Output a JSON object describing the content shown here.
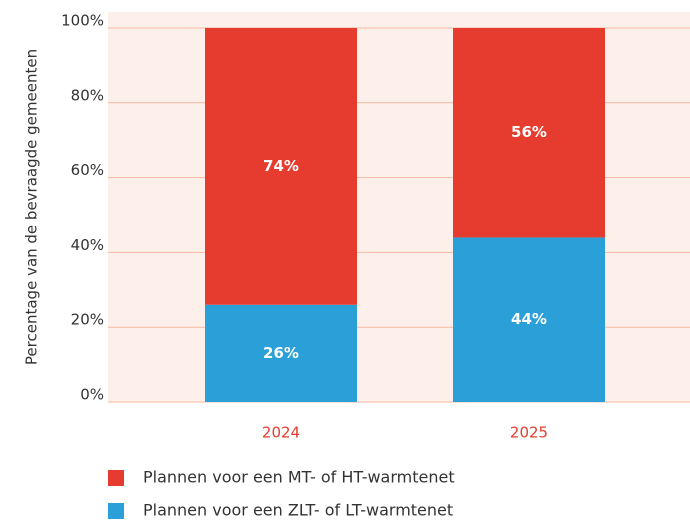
{
  "chart_data": {
    "type": "stacked_bar",
    "y_label": "Percentage van de bevraagde gemeenten",
    "categories": [
      "2024",
      "2025"
    ],
    "series": [
      {
        "name": "Plannen voor een MT- of HT-warmtenet",
        "color": "#e63c2f",
        "values": [
          74,
          56
        ],
        "value_labels": [
          "74%",
          "56%"
        ]
      },
      {
        "name": "Plannen voor een ZLT- of LT-warmtenet",
        "color": "#2a9fd8",
        "values": [
          26,
          44
        ],
        "value_labels": [
          "26%",
          "44%"
        ]
      }
    ],
    "ylim": [
      0,
      100
    ],
    "yticks": [
      {
        "value": 0,
        "label": "0%"
      },
      {
        "value": 20,
        "label": "20%"
      },
      {
        "value": 40,
        "label": "40%"
      },
      {
        "value": 60,
        "label": "60%"
      },
      {
        "value": 80,
        "label": "80%"
      },
      {
        "value": 100,
        "label": "100%"
      }
    ],
    "grid": true,
    "legend": "bottom"
  }
}
